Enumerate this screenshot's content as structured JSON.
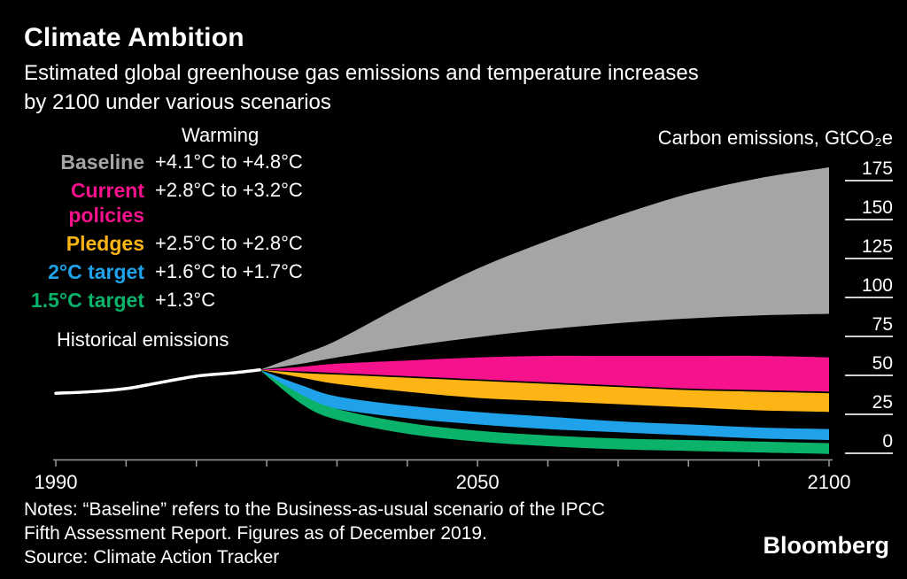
{
  "header": {
    "title": "Climate Ambition",
    "subtitle_lines": [
      "Estimated global greenhouse gas emissions and temperature increases",
      "by 2100 under various scenarios"
    ]
  },
  "legend": {
    "warming_header": "Warming"
  },
  "annotations": {
    "historical_label": "Historical emissions",
    "y_axis_title": "Carbon emissions, GtCO₂e"
  },
  "footer": {
    "notes_lines": [
      "Notes: “Baseline” refers to the Business-as-usual scenario of the IPCC",
      "Fifth Assessment Report. Figures as of December 2019."
    ],
    "source": "Source: Climate Action Tracker",
    "brand": "Bloomberg"
  },
  "chart_data": {
    "type": "area",
    "title": "Climate Ambition",
    "ylabel": "Carbon emissions, GtCO₂e",
    "background": "#000000",
    "axis_color": "#9b9b9b",
    "tick_label_color": "#ffffff",
    "y_tick_dash_color": "#d0d0d0",
    "y_ticks": [
      175,
      150,
      125,
      100,
      75,
      50,
      25,
      0
    ],
    "x_labeled_ticks": [
      1990,
      2050,
      2100
    ],
    "x_minor_tick_step": 10,
    "x_range": [
      1990,
      2100
    ],
    "y_range_displayed": [
      0,
      175
    ],
    "years": [
      2019,
      2025,
      2030,
      2040,
      2050,
      2060,
      2070,
      2080,
      2090,
      2100
    ],
    "historical": {
      "name": "Historical emissions",
      "color": "#ffffff",
      "years": [
        1990,
        1995,
        2000,
        2005,
        2010,
        2015,
        2019
      ],
      "values": [
        30,
        31,
        33,
        37,
        41,
        43,
        45
      ]
    },
    "series": [
      {
        "name": "Baseline",
        "warming": "+4.1°C to +4.8°C",
        "color": "#a5a5a5",
        "upper": [
          45,
          55,
          64,
          88,
          110,
          128,
          144,
          158,
          168,
          175
        ],
        "lower": [
          45,
          49,
          53,
          60,
          66,
          71,
          75,
          78,
          80,
          81
        ]
      },
      {
        "name": "Current policies",
        "warming": "+2.8°C to +3.2°C",
        "color": "#f5128c",
        "upper": [
          45,
          47,
          49,
          51,
          53,
          54,
          54,
          54,
          54,
          53
        ],
        "lower": [
          45,
          44,
          43,
          41,
          39,
          37,
          35,
          33,
          32,
          31
        ]
      },
      {
        "name": "Pledges",
        "warming": "+2.5°C to +2.8°C",
        "color": "#fcb514",
        "upper": [
          45,
          43,
          42,
          40,
          38,
          36,
          34,
          32,
          31,
          30
        ],
        "lower": [
          45,
          40,
          36,
          31,
          27,
          25,
          23,
          21,
          19,
          18
        ]
      },
      {
        "name": "2°C target",
        "warming": "+1.6°C to +1.7°C",
        "color": "#1fa2ea",
        "upper": [
          45,
          35,
          28,
          22,
          18,
          15,
          12,
          10,
          8,
          7
        ],
        "lower": [
          45,
          27,
          20,
          14,
          10,
          7,
          5,
          3,
          1,
          0
        ]
      },
      {
        "name": "1.5°C target",
        "warming": "+1.3°C",
        "color": "#0bb26a",
        "upper": [
          45,
          29,
          20,
          11,
          6,
          3,
          1,
          0,
          -1,
          -2
        ],
        "lower": [
          45,
          23,
          13,
          4,
          -1,
          -4,
          -6,
          -7,
          -8,
          -9
        ]
      }
    ]
  }
}
